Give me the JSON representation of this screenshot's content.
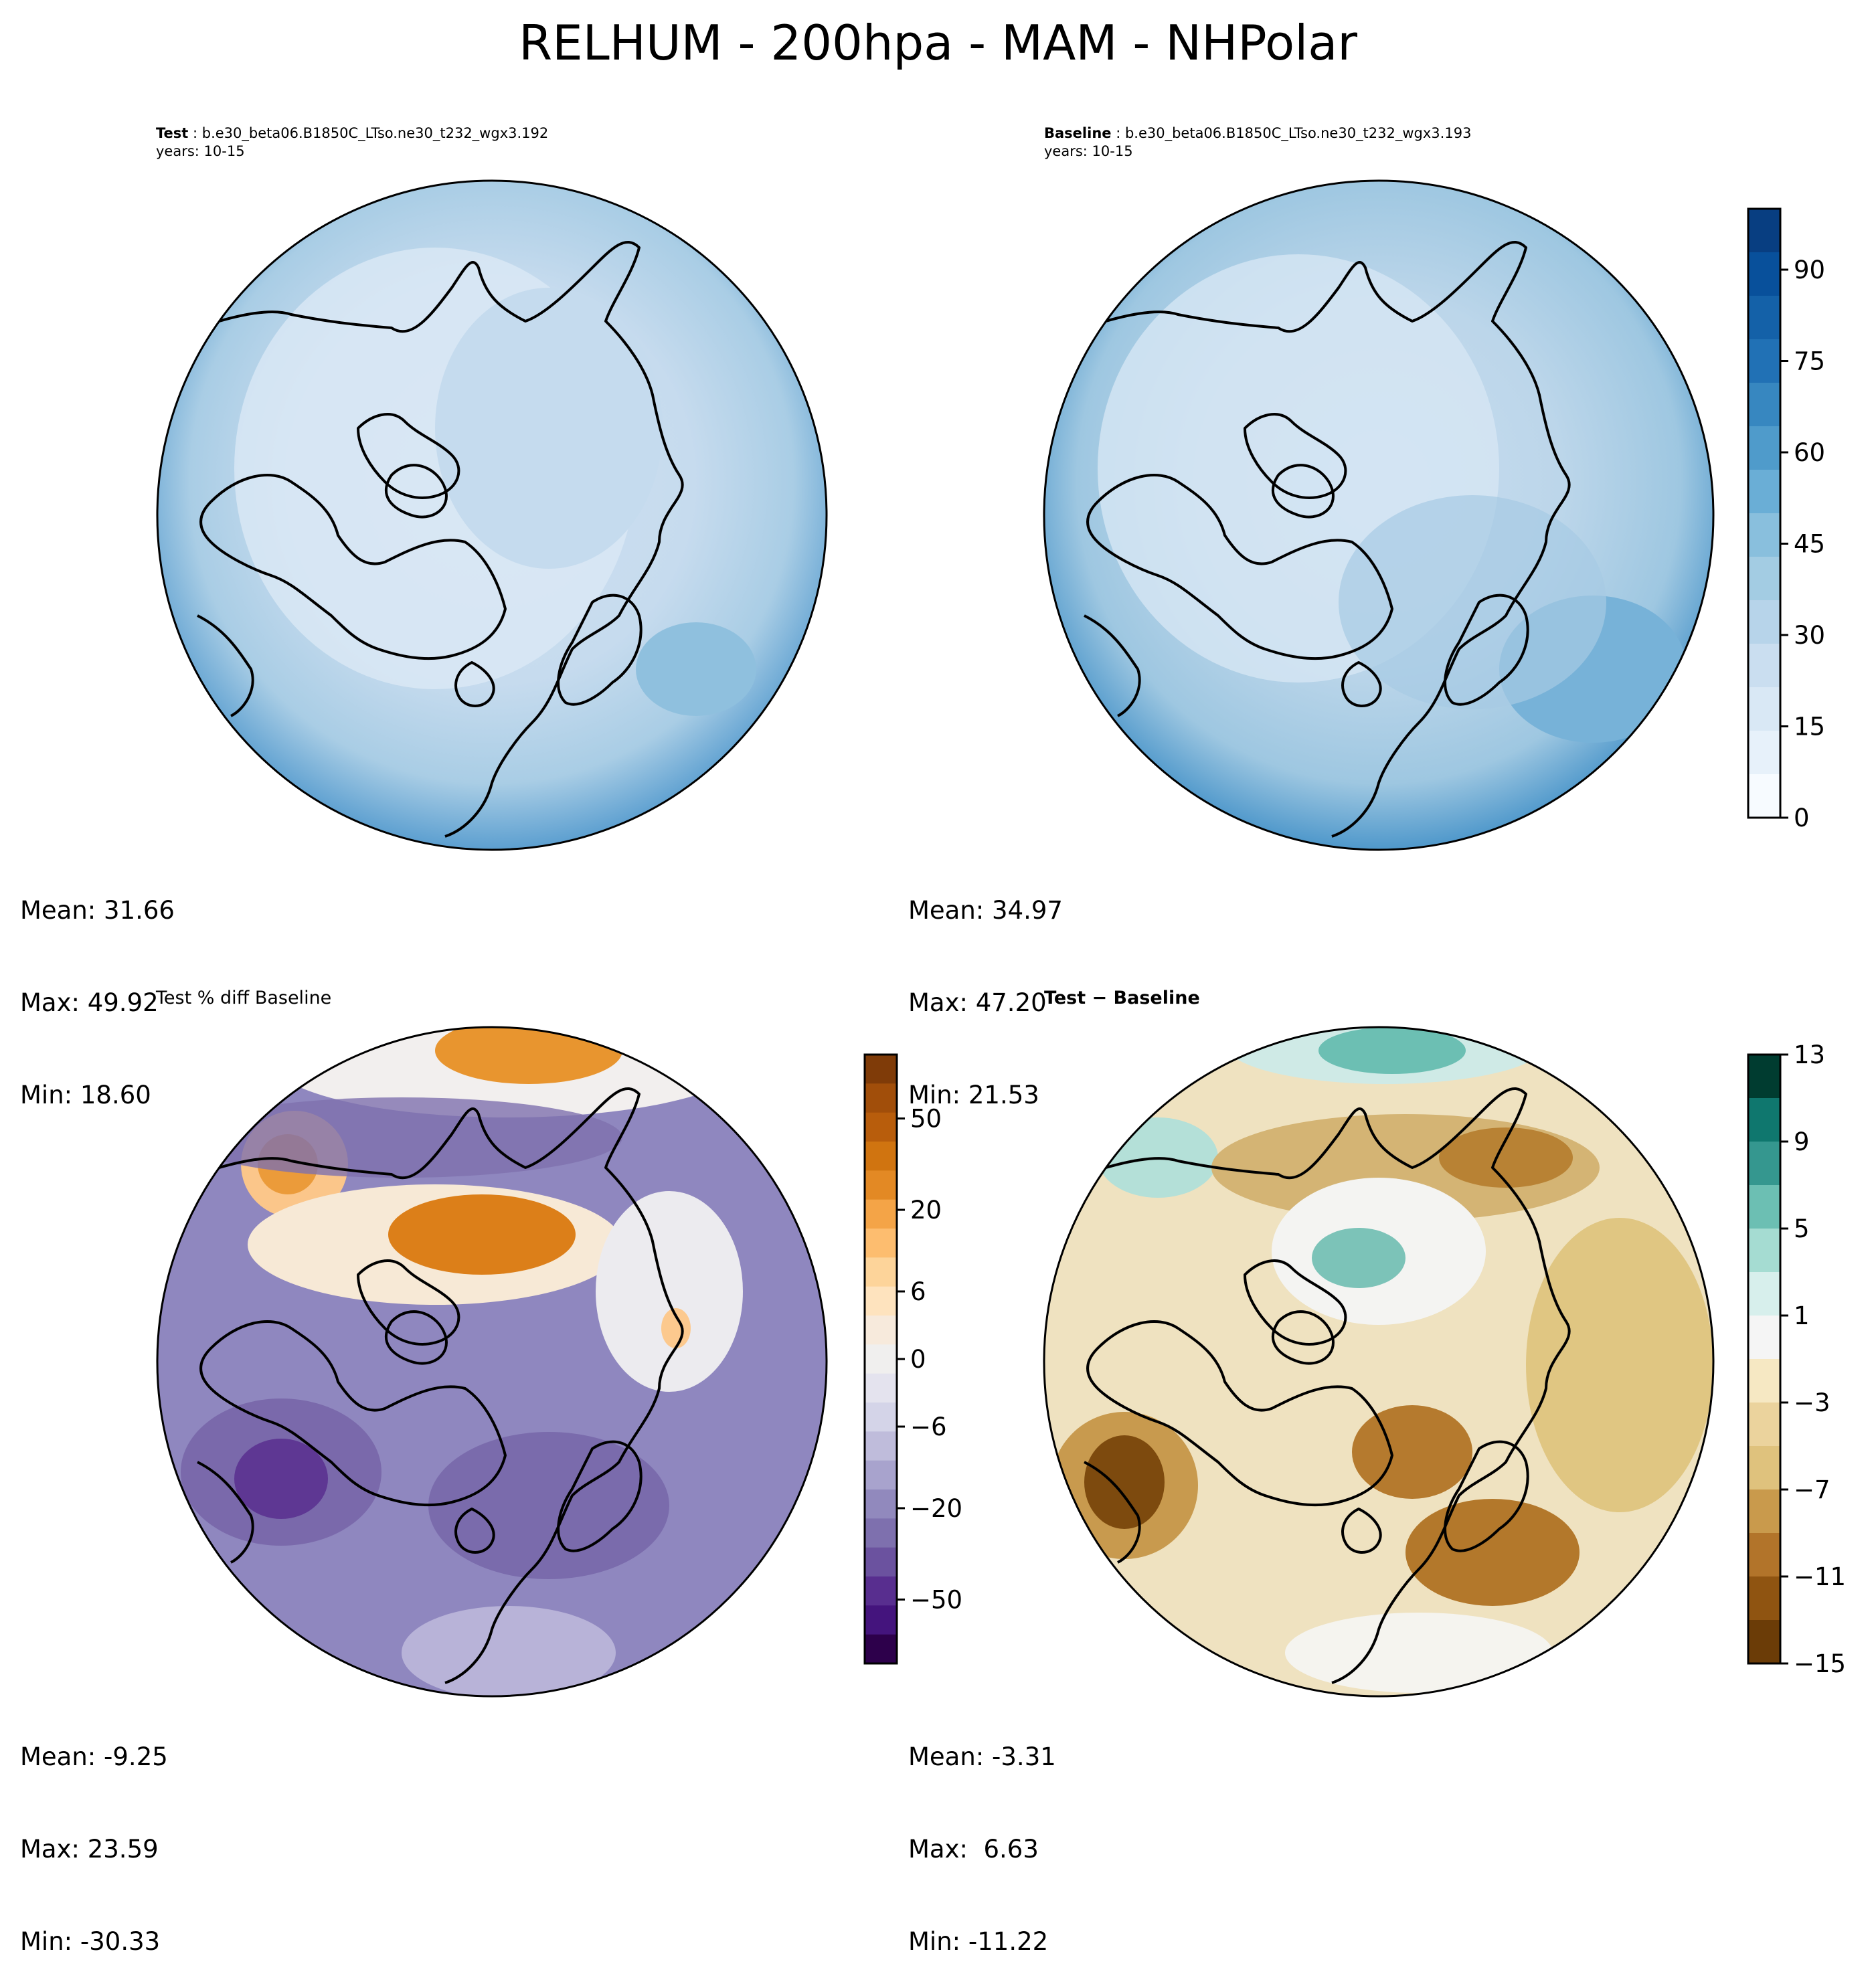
{
  "figure": {
    "title": "RELHUM - 200hpa - MAM - NHPolar"
  },
  "panels": {
    "test": {
      "label_bold": "Test",
      "label_rest": " : b.e30_beta06.B1850C_LTso.ne30_t232_wgx3.192",
      "years": "years: 10-15",
      "stats": {
        "mean": "Mean: 31.66",
        "max": "Max: 49.92",
        "min": "Min: 18.60"
      }
    },
    "baseline": {
      "label_bold": "Baseline",
      "label_rest": " : b.e30_beta06.B1850C_LTso.ne30_t232_wgx3.193",
      "years": "years: 10-15",
      "stats": {
        "mean": "Mean: 34.97",
        "max": "Max: 47.20",
        "min": "Min: 21.53"
      }
    },
    "pctdiff": {
      "label": "Test % diff Baseline",
      "stats": {
        "mean": "Mean: -9.25",
        "max": "Max: 23.59",
        "min": "Min: -30.33"
      }
    },
    "diff": {
      "label": "Test − Baseline",
      "stats": {
        "mean": "Mean: -3.31",
        "max": "Max:  6.63",
        "min": "Min: -11.22"
      }
    }
  },
  "colorbars": {
    "abs": {
      "ticks": [
        "0",
        "15",
        "30",
        "45",
        "60",
        "75",
        "90"
      ],
      "tick_values": [
        0,
        15,
        30,
        45,
        60,
        75,
        90
      ],
      "range": [
        0,
        100
      ],
      "colors": [
        "#f7fbff",
        "#e7f1fa",
        "#d9e8f5",
        "#cadef0",
        "#b7d4ea",
        "#a3cce3",
        "#89bfdd",
        "#6aaed6",
        "#4f9bcb",
        "#3787c0",
        "#2171b5",
        "#1461a8",
        "#08509b",
        "#083e81"
      ]
    },
    "pct": {
      "ticks": [
        "50",
        "20",
        "6",
        "0",
        "−6",
        "−20",
        "−50"
      ],
      "tick_fraction": [
        0.895,
        0.745,
        0.611,
        0.5,
        0.389,
        0.255,
        0.105
      ],
      "colors_top_to_bottom": [
        "#7f3b08",
        "#a14e0a",
        "#b85d0c",
        "#d07410",
        "#e38924",
        "#f4a447",
        "#fdbd6f",
        "#fdd49a",
        "#fee3be",
        "#f7eadc",
        "#f0efee",
        "#e4e3ee",
        "#d4d4e8",
        "#bfbcdb",
        "#a8a3cd",
        "#9189bd",
        "#7e70ae",
        "#6b529f",
        "#582e8f",
        "#44147d",
        "#2d004b"
      ]
    },
    "diff": {
      "ticks": [
        "13",
        "9",
        "5",
        "1",
        "−3",
        "−7",
        "−11",
        "−15"
      ],
      "tick_values": [
        13,
        9,
        5,
        1,
        -3,
        -7,
        -11,
        -15
      ],
      "range": [
        -15,
        13
      ],
      "colors_top_to_bottom": [
        "#003c30",
        "#0f776e",
        "#35978f",
        "#6cbfb3",
        "#a5dcd2",
        "#d7efec",
        "#f5f5f5",
        "#f6e8c3",
        "#ebd39d",
        "#dfc27d",
        "#c99a4c",
        "#b2742a",
        "#8f5411",
        "#6b3c07"
      ]
    }
  },
  "maps": {
    "test": {
      "base": "#c9dcee",
      "edge": "#8ab8da"
    },
    "baseline": {
      "base": "#bdd6ea",
      "edge": "#74acd4"
    },
    "pctdiff": {
      "base": "#8e85bd"
    },
    "diff": {
      "base": "#ecd8a6"
    }
  }
}
